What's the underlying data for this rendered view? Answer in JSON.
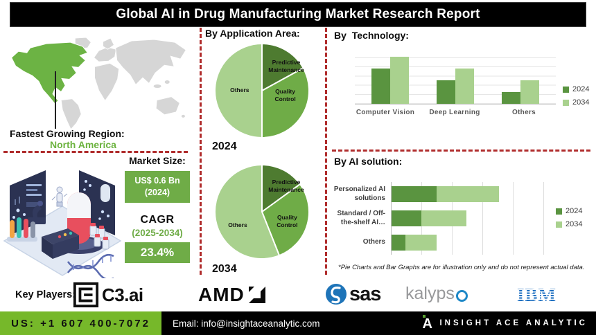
{
  "header": {
    "title": "Global AI in Drug Manufacturing Market Research Report"
  },
  "region": {
    "label": "Fastest Growing Region:",
    "value": "North America"
  },
  "market": {
    "size_label": "Market Size:",
    "size_value": "US$ 0.6 Bn",
    "size_year": "(2024)",
    "cagr_label": "CAGR",
    "cagr_period": "(2025-2034)",
    "cagr_value": "23.4%"
  },
  "application": {
    "heading": "By Application Area:"
  },
  "technology": {
    "heading": "By Technology:"
  },
  "solution": {
    "heading": "By AI solution:",
    "footnote": "*Pie Charts and Bar Graphs are for illustration only and do not represent actual data."
  },
  "players": {
    "label": "Key Players:",
    "logos": [
      {
        "name": "C3.ai",
        "text": "C3.ai"
      },
      {
        "name": "AMD",
        "text": "AMD"
      },
      {
        "name": "SAS",
        "text": "sas"
      },
      {
        "name": "Kalypso",
        "text": "kalypso",
        "text_main": "kalyps"
      },
      {
        "name": "IBM",
        "text": "IBM"
      }
    ]
  },
  "contact": {
    "phone": "US: +1 607 400-7072",
    "email": "Email: info@insightaceanalytic.com",
    "brand": "INSIGHT ACE ANALYTIC"
  },
  "colors": {
    "accent_green": "#6fac47",
    "light_green": "#a9d18e",
    "dark_green": "#4e7b30",
    "bright_green": "#76b82a",
    "divider_red": "#b02c2c",
    "header_bg": "#000000"
  },
  "chart_data": [
    {
      "id": "application-2024",
      "type": "pie",
      "title": "2024",
      "labels": [
        "Predictive Maintenance",
        "Quality Control",
        "Others"
      ],
      "values": [
        17,
        33,
        50
      ],
      "colors": [
        "#4e7b30",
        "#6fac47",
        "#a9d18e"
      ],
      "note": "values estimated; chart marked illustrative"
    },
    {
      "id": "application-2034",
      "type": "pie",
      "title": "2034",
      "labels": [
        "Predictive Maintenance",
        "Quality Control",
        "Others"
      ],
      "values": [
        15,
        29,
        56
      ],
      "colors": [
        "#4e7b30",
        "#6fac47",
        "#a9d18e"
      ],
      "note": "values estimated; chart marked illustrative"
    },
    {
      "id": "technology",
      "type": "bar",
      "title": "By Technology:",
      "categories": [
        "Computer Vision",
        "Deep Learning",
        "Others"
      ],
      "series": [
        {
          "name": "2024",
          "color": "#5a9440",
          "values": [
            75,
            50,
            25
          ]
        },
        {
          "name": "2034",
          "color": "#a9d18e",
          "values": [
            100,
            75,
            50
          ]
        }
      ],
      "ylim": [
        0,
        115
      ],
      "grid": true,
      "legend_position": "right",
      "note": "no numeric axis shown; values are relative estimates"
    },
    {
      "id": "ai-solution",
      "type": "bar",
      "orientation": "horizontal-stacked",
      "title": "By AI solution:",
      "categories": [
        "Personalized AI solutions",
        "Standard / Off-the-shelf AI…",
        "Others"
      ],
      "series": [
        {
          "name": "2024",
          "color": "#5a9440",
          "values": [
            26,
            17,
            8
          ]
        },
        {
          "name": "2034",
          "color": "#a9d18e",
          "values": [
            36,
            26,
            18
          ]
        }
      ],
      "xlim": [
        0,
        100
      ],
      "grid": true,
      "legend_position": "right",
      "note": "no numeric axis shown; values are relative estimates"
    }
  ]
}
